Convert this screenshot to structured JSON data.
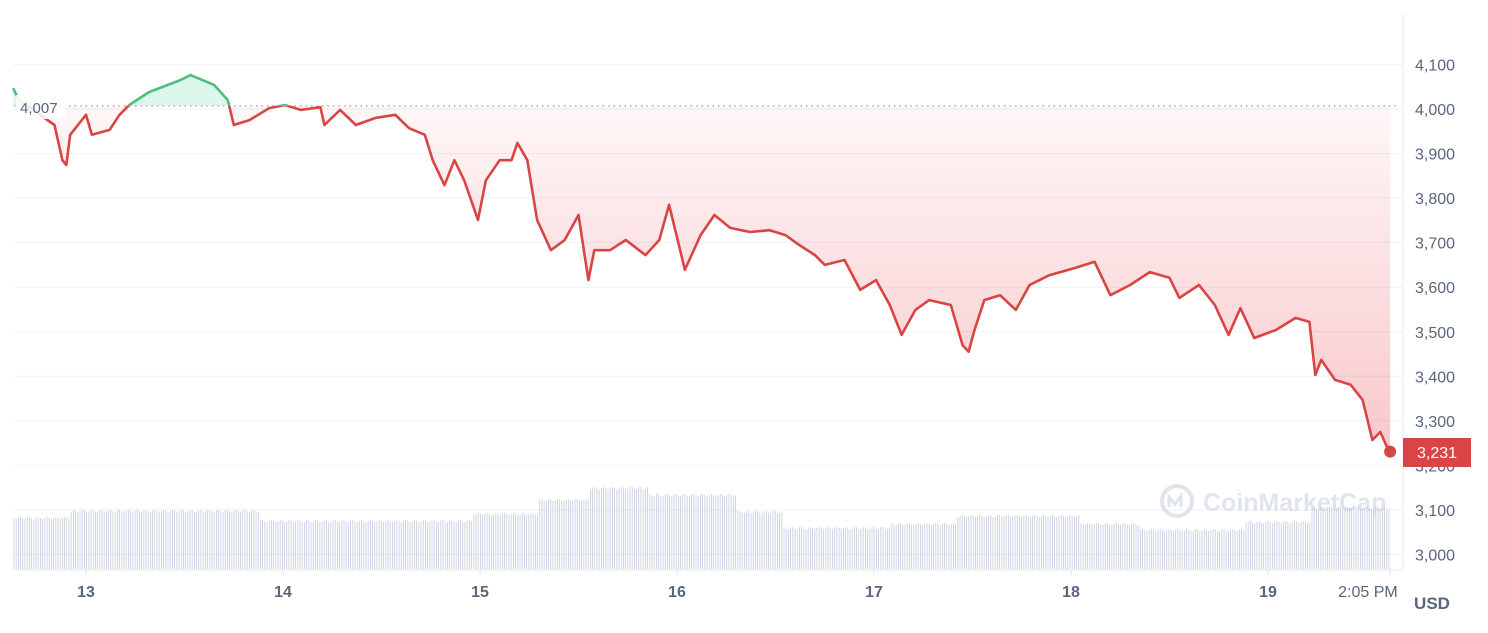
{
  "chart_data": {
    "type": "line",
    "title": "",
    "xlabel": "",
    "ylabel": "",
    "currency_label": "USD",
    "ylim": [
      2950,
      4180
    ],
    "y_ticks": [
      "3,000",
      "3,100",
      "3,200",
      "3,300",
      "3,400",
      "3,500",
      "3,600",
      "3,700",
      "3,800",
      "3,900",
      "4,000",
      "4,100"
    ],
    "y_tick_values": [
      3000,
      3100,
      3200,
      3300,
      3400,
      3500,
      3600,
      3700,
      3800,
      3900,
      4000,
      4100
    ],
    "x_ticks": [
      "13",
      "14",
      "15",
      "16",
      "17",
      "18",
      "19",
      "2:05 PM"
    ],
    "x_tick_values": [
      13,
      14,
      15,
      16,
      17,
      18,
      19,
      19.62
    ],
    "reference_price": 4007,
    "reference_label": "4,007",
    "current_price": 3231,
    "current_label": "3,231",
    "colors": {
      "up": "#16c784",
      "up_line": "#4fbf7c",
      "down": "#ea3943",
      "down_line": "#d94545",
      "axis_text": "#58667e",
      "grid": "#eff2f5",
      "volume": "#c3cbdc"
    },
    "grid": true,
    "watermark": "CoinMarketCap",
    "series": [
      {
        "x": [
          12.63,
          12.66,
          12.84,
          12.88,
          12.9,
          12.92,
          13.0,
          13.03,
          13.12,
          13.17,
          13.22,
          13.32,
          13.48,
          13.53,
          13.65,
          13.72,
          13.75,
          13.83,
          13.93,
          14.01,
          14.09,
          14.19,
          14.21,
          14.29,
          14.37,
          14.47,
          14.57,
          14.64,
          14.72,
          14.76,
          14.82,
          14.87,
          14.92,
          14.99,
          15.03,
          15.1,
          15.16,
          15.19,
          15.24,
          15.29,
          15.36,
          15.43,
          15.5,
          15.55,
          15.58,
          15.66,
          15.74,
          15.84,
          15.91,
          15.96,
          16.04,
          16.12,
          16.19,
          16.27,
          16.37,
          16.47,
          16.55,
          16.62,
          16.7,
          16.75,
          16.85,
          16.93,
          17.01,
          17.08,
          17.14,
          17.21,
          17.28,
          17.39,
          17.45,
          17.48,
          17.51,
          17.56,
          17.64,
          17.72,
          17.79,
          17.89,
          18.02,
          18.12,
          18.2,
          18.3,
          18.4,
          18.5,
          18.55,
          18.65,
          18.73,
          18.8,
          18.86,
          18.93,
          19.04,
          19.14,
          19.21,
          19.24,
          19.27,
          19.34,
          19.42,
          19.48,
          19.53,
          19.57,
          19.61,
          19.62
        ],
        "y": [
          4047,
          4020,
          3964,
          3885,
          3874,
          3942,
          3987,
          3942,
          3953,
          3987,
          4009,
          4038,
          4065,
          4076,
          4054,
          4020,
          3964,
          3975,
          4002,
          4009,
          3998,
          4004,
          3964,
          3998,
          3964,
          3980,
          3987,
          3957,
          3942,
          3885,
          3829,
          3885,
          3840,
          3751,
          3840,
          3885,
          3885,
          3924,
          3885,
          3751,
          3683,
          3706,
          3762,
          3616,
          3683,
          3683,
          3706,
          3672,
          3706,
          3785,
          3639,
          3717,
          3762,
          3733,
          3724,
          3728,
          3717,
          3695,
          3672,
          3650,
          3661,
          3594,
          3616,
          3560,
          3493,
          3549,
          3571,
          3560,
          3470,
          3455,
          3504,
          3571,
          3582,
          3549,
          3605,
          3627,
          3643,
          3657,
          3582,
          3605,
          3634,
          3621,
          3576,
          3605,
          3560,
          3493,
          3553,
          3486,
          3504,
          3531,
          3522,
          3403,
          3437,
          3392,
          3381,
          3347,
          3257,
          3275,
          3235,
          3231
        ]
      }
    ],
    "volume_relative": {
      "x_start": [
        12.63,
        12.92,
        13.88,
        14.96,
        15.3,
        15.55,
        15.86,
        16.3,
        16.54,
        17.08,
        17.42,
        18.05,
        18.35,
        18.88,
        19.22
      ],
      "level": [
        52,
        59,
        49,
        56,
        70,
        82,
        75,
        58,
        42,
        46,
        54,
        46,
        40,
        48,
        62
      ]
    }
  }
}
